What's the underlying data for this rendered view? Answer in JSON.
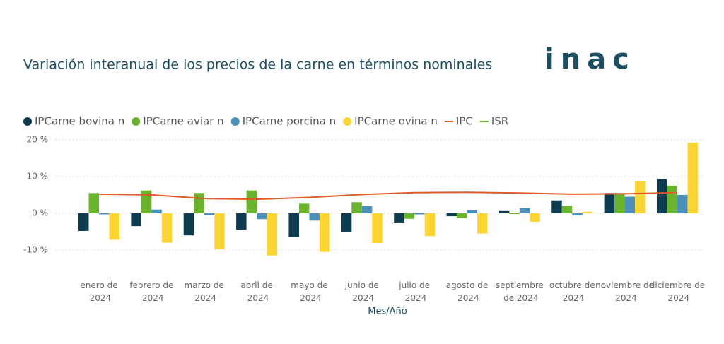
{
  "chart_data": {
    "type": "bar",
    "title": "Variación interanual de los precios de la carne en términos nominales",
    "logo": "inac",
    "x_label": "Mes/Año",
    "categories": [
      "enero de 2024",
      "febrero de 2024",
      "marzo de 2024",
      "abril de 2024",
      "mayo de 2024",
      "junio de 2024",
      "julio de 2024",
      "agosto de 2024",
      "septiembre de 2024",
      "octubre de 2024",
      "noviembre de 2024",
      "diciembre de 2024"
    ],
    "series": [
      {
        "name": "IPCarne bovina n",
        "color": "#0d3b4f",
        "type": "bar",
        "values": [
          -4.8,
          -3.5,
          -6,
          -4.5,
          -6.5,
          -5,
          -2.5,
          -0.8,
          0.6,
          3.5,
          5.5,
          9.3
        ]
      },
      {
        "name": "IPCarne aviar n",
        "color": "#6ab42d",
        "type": "bar",
        "values": [
          5.5,
          6.2,
          5.5,
          6.2,
          2.6,
          3.0,
          -1.5,
          -1.3,
          -0.2,
          2.0,
          5.5,
          7.5
        ]
      },
      {
        "name": "IPCarne porcina n",
        "color": "#4a90b8",
        "type": "bar",
        "values": [
          -0.3,
          1.0,
          -0.5,
          -1.6,
          -2.0,
          1.9,
          -0.3,
          0.8,
          1.4,
          -0.6,
          4.5,
          5.0
        ]
      },
      {
        "name": "IPCarne ovina n",
        "color": "#fcd433",
        "type": "bar",
        "values": [
          -7.2,
          -8.0,
          -9.8,
          -11.5,
          -10.5,
          -8.1,
          -6.2,
          -5.5,
          -2.3,
          0.4,
          8.8,
          19.2
        ]
      },
      {
        "name": "IPC",
        "color": "#e0592a",
        "type": "line",
        "values": [
          5.2,
          5.0,
          4.0,
          3.8,
          4.3,
          5.1,
          5.6,
          5.7,
          5.5,
          5.2,
          5.3,
          5.6
        ]
      },
      {
        "name": "ISR",
        "color": "#6ab42d",
        "type": "line",
        "values": [
          null,
          null,
          null,
          null,
          null,
          null,
          null,
          null,
          null,
          null,
          null,
          null
        ]
      }
    ],
    "ylim": [
      -12.5,
      21.5
    ],
    "yticks": [
      {
        "value": -10,
        "label": "-10 %"
      },
      {
        "value": 0,
        "label": "0 %"
      },
      {
        "value": 10,
        "label": "10 %"
      },
      {
        "value": 20,
        "label": "20 %"
      }
    ],
    "grid": true
  }
}
